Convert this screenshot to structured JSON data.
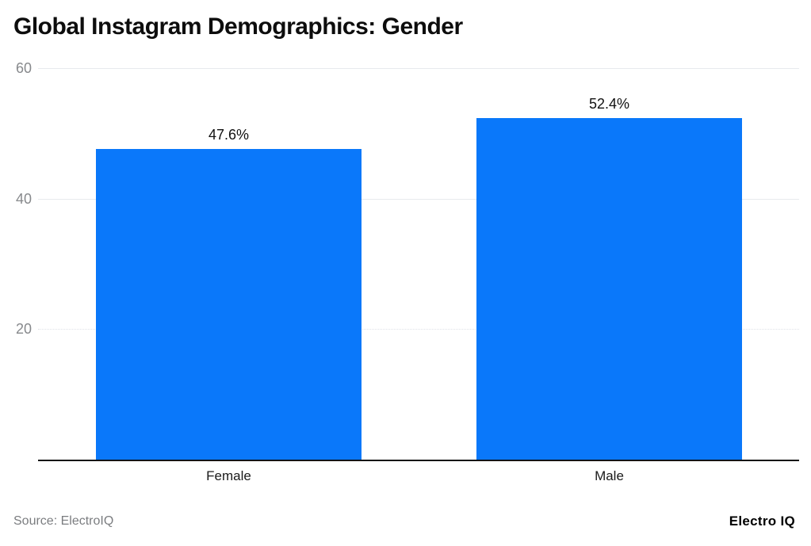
{
  "title": "Global Instagram Demographics: Gender",
  "footer": {
    "source_text": "Source: ElectroIQ",
    "brand_text": "Electro IQ"
  },
  "colors": {
    "bar": "#0a78fa",
    "axis": "#131313",
    "gridline": "#e7eaed",
    "tick_label": "#87898c",
    "value_label": "#111111",
    "background": "#ffffff"
  },
  "chart_data": {
    "type": "bar",
    "categories": [
      "Female",
      "Male"
    ],
    "values": [
      47.6,
      52.4
    ],
    "value_labels": [
      "47.6%",
      "52.4%"
    ],
    "title": "Global Instagram Demographics: Gender",
    "xlabel": "",
    "ylabel": "",
    "ylim": [
      0,
      60
    ],
    "yticks": [
      20,
      40,
      60
    ],
    "grid": true,
    "legend": false,
    "bar_color": "#0a78fa"
  }
}
